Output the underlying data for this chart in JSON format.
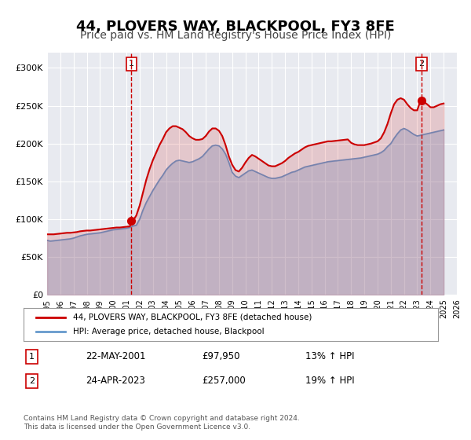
{
  "title": "44, PLOVERS WAY, BLACKPOOL, FY3 8FE",
  "subtitle": "Price paid vs. HM Land Registry's House Price Index (HPI)",
  "title_fontsize": 13,
  "subtitle_fontsize": 10,
  "background_color": "#ffffff",
  "plot_bg_color": "#e8eaf0",
  "grid_color": "#ffffff",
  "ylim": [
    0,
    320000
  ],
  "yticks": [
    0,
    50000,
    100000,
    150000,
    200000,
    250000,
    300000
  ],
  "ytick_labels": [
    "£0",
    "£50K",
    "£100K",
    "£150K",
    "£200K",
    "£250K",
    "£300K"
  ],
  "xmin": 1995.0,
  "xmax": 2026.0,
  "sale1_x": 2001.38,
  "sale1_y": 97950,
  "sale2_x": 2023.32,
  "sale2_y": 257000,
  "sale1_label": "1",
  "sale2_label": "2",
  "sale1_vline_color": "#cc0000",
  "sale2_vline_color": "#cc0000",
  "sale_dot_color": "#cc0000",
  "red_line_color": "#cc0000",
  "blue_line_color": "#6699cc",
  "legend_label1": "44, PLOVERS WAY, BLACKPOOL, FY3 8FE (detached house)",
  "legend_label2": "HPI: Average price, detached house, Blackpool",
  "table_row1": [
    "1",
    "22-MAY-2001",
    "£97,950",
    "13% ↑ HPI"
  ],
  "table_row2": [
    "2",
    "24-APR-2023",
    "£257,000",
    "19% ↑ HPI"
  ],
  "footnote": "Contains HM Land Registry data © Crown copyright and database right 2024.\nThis data is licensed under the Open Government Licence v3.0.",
  "hpi_data": {
    "x": [
      1995.0,
      1995.25,
      1995.5,
      1995.75,
      1996.0,
      1996.25,
      1996.5,
      1996.75,
      1997.0,
      1997.25,
      1997.5,
      1997.75,
      1998.0,
      1998.25,
      1998.5,
      1998.75,
      1999.0,
      1999.25,
      1999.5,
      1999.75,
      2000.0,
      2000.25,
      2000.5,
      2000.75,
      2001.0,
      2001.25,
      2001.5,
      2001.75,
      2002.0,
      2002.25,
      2002.5,
      2002.75,
      2003.0,
      2003.25,
      2003.5,
      2003.75,
      2004.0,
      2004.25,
      2004.5,
      2004.75,
      2005.0,
      2005.25,
      2005.5,
      2005.75,
      2006.0,
      2006.25,
      2006.5,
      2006.75,
      2007.0,
      2007.25,
      2007.5,
      2007.75,
      2008.0,
      2008.25,
      2008.5,
      2008.75,
      2009.0,
      2009.25,
      2009.5,
      2009.75,
      2010.0,
      2010.25,
      2010.5,
      2010.75,
      2011.0,
      2011.25,
      2011.5,
      2011.75,
      2012.0,
      2012.25,
      2012.5,
      2012.75,
      2013.0,
      2013.25,
      2013.5,
      2013.75,
      2014.0,
      2014.25,
      2014.5,
      2014.75,
      2015.0,
      2015.25,
      2015.5,
      2015.75,
      2016.0,
      2016.25,
      2016.5,
      2016.75,
      2017.0,
      2017.25,
      2017.5,
      2017.75,
      2018.0,
      2018.25,
      2018.5,
      2018.75,
      2019.0,
      2019.25,
      2019.5,
      2019.75,
      2020.0,
      2020.25,
      2020.5,
      2020.75,
      2021.0,
      2021.25,
      2021.5,
      2021.75,
      2022.0,
      2022.25,
      2022.5,
      2022.75,
      2023.0,
      2023.25,
      2023.5,
      2023.75,
      2024.0,
      2024.25,
      2024.5,
      2024.75,
      2025.0
    ],
    "y": [
      72000,
      71000,
      71500,
      72000,
      72500,
      73000,
      73500,
      74000,
      75000,
      76500,
      78000,
      79000,
      80000,
      80500,
      81000,
      81500,
      82000,
      83000,
      84000,
      85000,
      86000,
      86500,
      87000,
      87500,
      88000,
      89000,
      91000,
      92000,
      100000,
      112000,
      122000,
      130000,
      138000,
      145000,
      152000,
      158000,
      165000,
      170000,
      174000,
      177000,
      178000,
      177000,
      176000,
      175000,
      176000,
      178000,
      180000,
      183000,
      188000,
      193000,
      197000,
      198000,
      197000,
      193000,
      186000,
      175000,
      162000,
      157000,
      155000,
      158000,
      161000,
      164000,
      165000,
      163000,
      161000,
      159000,
      157000,
      155000,
      154000,
      154000,
      155000,
      156000,
      158000,
      160000,
      162000,
      163000,
      165000,
      167000,
      169000,
      170000,
      171000,
      172000,
      173000,
      174000,
      175000,
      176000,
      176500,
      177000,
      177500,
      178000,
      178500,
      179000,
      179500,
      180000,
      180500,
      181000,
      182000,
      183000,
      184000,
      185000,
      186000,
      188000,
      191000,
      196000,
      200000,
      207000,
      213000,
      218000,
      220000,
      218000,
      215000,
      212000,
      210000,
      211000,
      212000,
      213000,
      214000,
      215000,
      216000,
      217000,
      218000
    ]
  },
  "red_data": {
    "x": [
      1995.0,
      1995.25,
      1995.5,
      1995.75,
      1996.0,
      1996.25,
      1996.5,
      1996.75,
      1997.0,
      1997.25,
      1997.5,
      1997.75,
      1998.0,
      1998.25,
      1998.5,
      1998.75,
      1999.0,
      1999.25,
      1999.5,
      1999.75,
      2000.0,
      2000.25,
      2000.5,
      2000.75,
      2001.0,
      2001.25,
      2001.5,
      2001.75,
      2002.0,
      2002.25,
      2002.5,
      2002.75,
      2003.0,
      2003.25,
      2003.5,
      2003.75,
      2004.0,
      2004.25,
      2004.5,
      2004.75,
      2005.0,
      2005.25,
      2005.5,
      2005.75,
      2006.0,
      2006.25,
      2006.5,
      2006.75,
      2007.0,
      2007.25,
      2007.5,
      2007.75,
      2008.0,
      2008.25,
      2008.5,
      2008.75,
      2009.0,
      2009.25,
      2009.5,
      2009.75,
      2010.0,
      2010.25,
      2010.5,
      2010.75,
      2011.0,
      2011.25,
      2011.5,
      2011.75,
      2012.0,
      2012.25,
      2012.5,
      2012.75,
      2013.0,
      2013.25,
      2013.5,
      2013.75,
      2014.0,
      2014.25,
      2014.5,
      2014.75,
      2015.0,
      2015.25,
      2015.5,
      2015.75,
      2016.0,
      2016.25,
      2016.5,
      2016.75,
      2017.0,
      2017.25,
      2017.5,
      2017.75,
      2018.0,
      2018.25,
      2018.5,
      2018.75,
      2019.0,
      2019.25,
      2019.5,
      2019.75,
      2020.0,
      2020.25,
      2020.5,
      2020.75,
      2021.0,
      2021.25,
      2021.5,
      2021.75,
      2022.0,
      2022.25,
      2022.5,
      2022.75,
      2023.0,
      2023.25,
      2023.5,
      2023.75,
      2024.0,
      2024.25,
      2024.5,
      2024.75,
      2025.0
    ],
    "y": [
      80000,
      80000,
      80000,
      80500,
      81000,
      81500,
      82000,
      82000,
      82500,
      83000,
      84000,
      84500,
      85000,
      85000,
      85500,
      86000,
      86500,
      87000,
      87500,
      88000,
      88500,
      89000,
      89000,
      89500,
      90000,
      90500,
      97950,
      105000,
      118000,
      135000,
      152000,
      166000,
      178000,
      188000,
      198000,
      206000,
      215000,
      220000,
      223000,
      223000,
      221000,
      219000,
      215000,
      210000,
      207000,
      205000,
      205000,
      206000,
      210000,
      216000,
      220000,
      220000,
      217000,
      210000,
      198000,
      183000,
      172000,
      165000,
      163000,
      168000,
      175000,
      181000,
      185000,
      183000,
      180000,
      177000,
      174000,
      171000,
      170000,
      170000,
      172000,
      174000,
      177000,
      181000,
      184000,
      187000,
      189000,
      192000,
      195000,
      197000,
      198000,
      199000,
      200000,
      201000,
      202000,
      203000,
      203000,
      203500,
      204000,
      204500,
      205000,
      205500,
      201000,
      199000,
      198000,
      198000,
      198000,
      199000,
      200000,
      201500,
      203000,
      207000,
      215000,
      226000,
      240000,
      252000,
      258000,
      260000,
      258000,
      252000,
      247000,
      244000,
      244000,
      257000,
      255000,
      252000,
      248000,
      248000,
      250000,
      252000,
      253000
    ]
  }
}
